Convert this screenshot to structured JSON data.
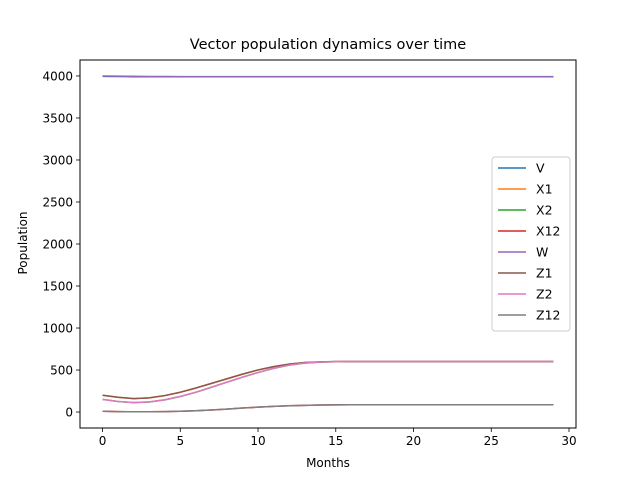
{
  "chart_data": {
    "type": "line",
    "title": "Vector population dynamics over time",
    "xlabel": "Months",
    "ylabel": "Population",
    "xlim": [
      -1.45,
      30.45
    ],
    "ylim": [
      -190,
      4190
    ],
    "xticks": [
      0,
      5,
      10,
      15,
      20,
      25,
      30
    ],
    "yticks": [
      0,
      500,
      1000,
      1500,
      2000,
      2500,
      3000,
      3500,
      4000
    ],
    "grid": false,
    "legend": "center-right",
    "x": [
      0,
      1,
      2,
      3,
      4,
      5,
      6,
      7,
      8,
      9,
      10,
      11,
      12,
      13,
      14,
      15,
      16,
      17,
      18,
      19,
      20,
      21,
      22,
      23,
      24,
      25,
      26,
      27,
      28,
      29
    ],
    "series": [
      {
        "name": "V",
        "color": "#1f77b4",
        "values": [
          3995,
          3993,
          3991,
          3990,
          3990,
          3990,
          3990,
          3990,
          3990,
          3990,
          3990,
          3990,
          3990,
          3990,
          3990,
          3990,
          3990,
          3990,
          3990,
          3990,
          3990,
          3990,
          3990,
          3990,
          3990,
          3990,
          3990,
          3990,
          3990,
          3990
        ]
      },
      {
        "name": "X1",
        "color": "#ff7f0e",
        "values": [
          200,
          175,
          160,
          168,
          195,
          235,
          285,
          340,
          395,
          450,
          500,
          540,
          570,
          588,
          596,
          600,
          600,
          600,
          600,
          600,
          600,
          600,
          600,
          600,
          600,
          600,
          600,
          600,
          600,
          600
        ]
      },
      {
        "name": "X2",
        "color": "#2ca02c",
        "values": [
          150,
          125,
          112,
          120,
          145,
          185,
          235,
          295,
          355,
          415,
          470,
          520,
          558,
          582,
          594,
          598,
          600,
          600,
          600,
          600,
          600,
          600,
          600,
          600,
          600,
          600,
          600,
          600,
          600,
          600
        ]
      },
      {
        "name": "X12",
        "color": "#d62728",
        "values": [
          10,
          5,
          3,
          3,
          5,
          9,
          15,
          24,
          35,
          48,
          58,
          67,
          75,
          80,
          83,
          85,
          86,
          87,
          87,
          87,
          87,
          87,
          87,
          87,
          87,
          87,
          87,
          87,
          87,
          87
        ]
      },
      {
        "name": "W",
        "color": "#9467bd",
        "values": [
          4000,
          3998,
          3996,
          3994,
          3993,
          3992,
          3992,
          3992,
          3992,
          3992,
          3992,
          3992,
          3992,
          3992,
          3992,
          3992,
          3992,
          3992,
          3992,
          3992,
          3992,
          3992,
          3992,
          3992,
          3992,
          3992,
          3992,
          3992,
          3992,
          3992
        ]
      },
      {
        "name": "Z1",
        "color": "#8c564b",
        "values": [
          200,
          176,
          160,
          168,
          196,
          236,
          286,
          341,
          396,
          451,
          501,
          541,
          571,
          589,
          597,
          601,
          601,
          601,
          601,
          601,
          601,
          601,
          601,
          601,
          601,
          601,
          601,
          601,
          601,
          601
        ]
      },
      {
        "name": "Z2",
        "color": "#e377c2",
        "values": [
          150,
          126,
          113,
          121,
          146,
          186,
          236,
          296,
          356,
          416,
          471,
          521,
          559,
          583,
          595,
          599,
          601,
          601,
          601,
          601,
          601,
          601,
          601,
          601,
          601,
          601,
          601,
          601,
          601,
          601
        ]
      },
      {
        "name": "Z12",
        "color": "#7f7f7f",
        "values": [
          10,
          5,
          3,
          3,
          5,
          9,
          15,
          24,
          35,
          48,
          58,
          67,
          75,
          80,
          83,
          85,
          86,
          87,
          87,
          87,
          87,
          87,
          87,
          87,
          87,
          87,
          87,
          87,
          87,
          87
        ]
      }
    ]
  }
}
